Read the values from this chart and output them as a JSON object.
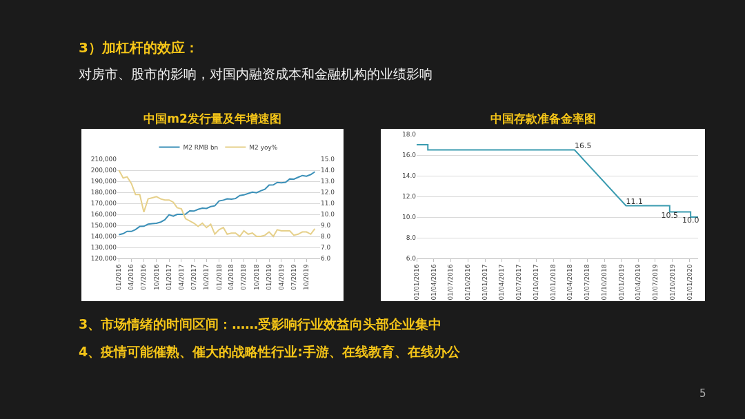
{
  "chart_data": [
    {
      "type": "line",
      "title": "中国m2发行量及年增速图",
      "legend": "top",
      "grid": "y",
      "x": [
        "2016-01",
        "2016-02",
        "2016-03",
        "2016-04",
        "2016-05",
        "2016-06",
        "2016-07",
        "2016-08",
        "2016-09",
        "2016-10",
        "2016-11",
        "2016-12",
        "2017-01",
        "2017-02",
        "2017-03",
        "2017-04",
        "2017-05",
        "2017-06",
        "2017-07",
        "2017-08",
        "2017-09",
        "2017-10",
        "2017-11",
        "2017-12",
        "2018-01",
        "2018-02",
        "2018-03",
        "2018-04",
        "2018-05",
        "2018-06",
        "2018-07",
        "2018-08",
        "2018-09",
        "2018-10",
        "2018-11",
        "2018-12",
        "2019-01",
        "2019-02",
        "2019-03",
        "2019-04",
        "2019-05",
        "2019-06",
        "2019-07",
        "2019-08",
        "2019-09",
        "2019-10",
        "2019-11",
        "2019-12"
      ],
      "series": [
        {
          "name": "M2 RMB bn",
          "color": "#3a8fb7",
          "values": [
            141600,
            142500,
            144600,
            144500,
            146200,
            149000,
            149200,
            151100,
            151600,
            151900,
            153000,
            155000,
            159600,
            158300,
            160000,
            160000,
            160100,
            163100,
            162900,
            164500,
            165600,
            165300,
            167000,
            167700,
            172100,
            172900,
            174000,
            173800,
            174300,
            177000,
            177600,
            178900,
            180200,
            179600,
            181300,
            182700,
            186600,
            186700,
            188900,
            188600,
            189100,
            192100,
            191900,
            193600,
            195200,
            194600,
            196100,
            198600
          ]
        },
        {
          "name": "M2 yoy%",
          "color": "#e6d08a",
          "axis": "y2",
          "values": [
            14.0,
            13.3,
            13.4,
            12.8,
            11.8,
            11.8,
            10.2,
            11.4,
            11.5,
            11.6,
            11.4,
            11.3,
            11.3,
            11.1,
            10.6,
            10.5,
            9.6,
            9.4,
            9.2,
            8.9,
            9.2,
            8.8,
            9.1,
            8.2,
            8.6,
            8.8,
            8.2,
            8.3,
            8.3,
            8.0,
            8.5,
            8.2,
            8.3,
            8.0,
            8.0,
            8.1,
            8.4,
            8.0,
            8.6,
            8.5,
            8.5,
            8.5,
            8.1,
            8.2,
            8.4,
            8.4,
            8.2,
            8.7
          ]
        }
      ],
      "xlim": [
        "2015-12-20",
        "2020-01-08"
      ],
      "xticks": [
        {
          "value": "2016-01",
          "label": "01/2016"
        },
        {
          "value": "2016-04",
          "label": "04/2016"
        },
        {
          "value": "2016-07",
          "label": "07/2016"
        },
        {
          "value": "2016-10",
          "label": "10/2016"
        },
        {
          "value": "2017-01",
          "label": "01/2017"
        },
        {
          "value": "2017-04",
          "label": "04/2017"
        },
        {
          "value": "2017-07",
          "label": "07/2017"
        },
        {
          "value": "2017-10",
          "label": "10/2017"
        },
        {
          "value": "2018-01",
          "label": "01/2018"
        },
        {
          "value": "2018-04",
          "label": "04/2018"
        },
        {
          "value": "2018-07",
          "label": "07/2018"
        },
        {
          "value": "2018-10",
          "label": "10/2018"
        },
        {
          "value": "2019-01",
          "label": "01/2019"
        },
        {
          "value": "2019-04",
          "label": "04/2019"
        },
        {
          "value": "2019-07",
          "label": "07/2019"
        },
        {
          "value": "2019-10",
          "label": "10/2019"
        }
      ],
      "ylim": [
        120000,
        210000
      ],
      "yticks": [
        {
          "value": 120000,
          "label": "120,000"
        },
        {
          "value": 130000,
          "label": "130,000"
        },
        {
          "value": 140000,
          "label": "140,000"
        },
        {
          "value": 150000,
          "label": "150,000"
        },
        {
          "value": 160000,
          "label": "160,000"
        },
        {
          "value": 170000,
          "label": "170,000"
        },
        {
          "value": 180000,
          "label": "180,000"
        },
        {
          "value": 190000,
          "label": "190,000"
        },
        {
          "value": 200000,
          "label": "200,000"
        },
        {
          "value": 210000,
          "label": "210,000"
        }
      ],
      "y2lim": [
        6,
        15
      ],
      "y2ticks": [
        {
          "value": 6,
          "label": "6.0"
        },
        {
          "value": 7,
          "label": "7.0"
        },
        {
          "value": 8,
          "label": "8.0"
        },
        {
          "value": 9,
          "label": "9.0"
        },
        {
          "value": 10,
          "label": "10.0"
        },
        {
          "value": 11,
          "label": "11.0"
        },
        {
          "value": 12,
          "label": "12.0"
        },
        {
          "value": 13,
          "label": "13.0"
        },
        {
          "value": 14,
          "label": "14.0"
        },
        {
          "value": 15,
          "label": "15.0"
        }
      ]
    },
    {
      "type": "line",
      "title": "中国存款准备金率图",
      "grid": "y",
      "legend": false,
      "x": [
        "2016-01-01",
        "2016-03-01",
        "2016-03-01",
        "2018-04-25",
        "2019-01-25",
        "2019-09-16",
        "2019-09-16",
        "2020-01-06",
        "2020-01-06",
        "2020-02-15"
      ],
      "series": [
        {
          "color": "#3a9bb0",
          "values": [
            17.0,
            17.0,
            16.5,
            16.5,
            11.1,
            11.1,
            10.5,
            10.5,
            10.0,
            10.0
          ],
          "value_labels": [
            null,
            null,
            null,
            "16.5",
            "11.1",
            null,
            "10.5",
            null,
            "10.0",
            null
          ]
        }
      ],
      "xlim": [
        "2016-01-01",
        "2020-02-15"
      ],
      "xticks": [
        {
          "value": "2016-01-01",
          "label": "01/01/2016"
        },
        {
          "value": "2016-04-01",
          "label": "01/04/2016"
        },
        {
          "value": "2016-07-01",
          "label": "01/07/2016"
        },
        {
          "value": "2016-10-01",
          "label": "01/10/2016"
        },
        {
          "value": "2017-01-01",
          "label": "01/01/2017"
        },
        {
          "value": "2017-04-01",
          "label": "01/04/2017"
        },
        {
          "value": "2017-07-01",
          "label": "01/07/2017"
        },
        {
          "value": "2017-10-01",
          "label": "01/10/2017"
        },
        {
          "value": "2018-01-01",
          "label": "01/01/2018"
        },
        {
          "value": "2018-04-01",
          "label": "01/04/2018"
        },
        {
          "value": "2018-07-01",
          "label": "01/07/2018"
        },
        {
          "value": "2018-10-01",
          "label": "01/10/2018"
        },
        {
          "value": "2019-01-01",
          "label": "01/01/2019"
        },
        {
          "value": "2019-04-01",
          "label": "01/04/2019"
        },
        {
          "value": "2019-07-01",
          "label": "01/07/2019"
        },
        {
          "value": "2019-10-01",
          "label": "01/10/2019"
        },
        {
          "value": "2020-01-01",
          "label": "01/01/2020"
        }
      ],
      "ylim": [
        6,
        18
      ],
      "yticks": [
        {
          "value": 6,
          "label": "6.0"
        },
        {
          "value": 8,
          "label": "8.0"
        },
        {
          "value": 10,
          "label": "10.0"
        },
        {
          "value": 12,
          "label": "12.0"
        },
        {
          "value": 14,
          "label": "14.0"
        },
        {
          "value": 16,
          "label": "16.0"
        },
        {
          "value": 18,
          "label": "18.0"
        }
      ]
    },
    {
      "type": "other",
      "title": "3）加杠杆的效应：",
      "subtitle": "对房市、股市的影响，对国内融资成本和金融机构的业绩影响",
      "annotations": [
        "3、市场情绪的时间区间：……受影响行业效益向头部企业集中",
        "4、疫情可能催熟、催大的战略性行业:手游、在线教育、在线办公",
        "5"
      ]
    }
  ]
}
